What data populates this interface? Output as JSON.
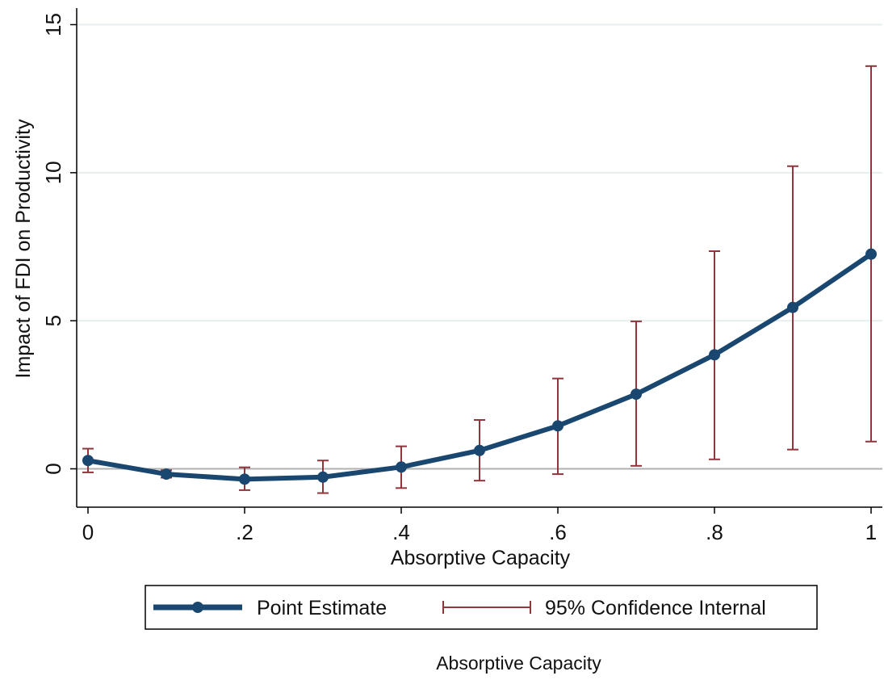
{
  "chart_data": {
    "type": "line",
    "xlabel": "Absorptive Capacity",
    "ylabel": "Impact of FDI on Productivity",
    "xlim": [
      0,
      1
    ],
    "ylim": [
      -1.3,
      15.5
    ],
    "xticks": [
      0,
      0.2,
      0.4,
      0.6,
      0.8,
      1
    ],
    "xtick_labels": [
      "0",
      ".2",
      ".4",
      ".6",
      ".8",
      "1"
    ],
    "yticks": [
      0,
      5,
      10,
      15
    ],
    "ytick_labels": [
      "0",
      "5",
      "10",
      "15"
    ],
    "grid": "horizontal",
    "legend_placement": "bottom",
    "x": [
      0,
      0.1,
      0.2,
      0.3,
      0.4,
      0.5,
      0.6,
      0.7,
      0.8,
      0.9,
      1.0
    ],
    "series": [
      {
        "name": "Point Estimate",
        "type": "line",
        "color": "#1a476f",
        "values": [
          0.28,
          -0.18,
          -0.35,
          -0.28,
          0.06,
          0.62,
          1.45,
          2.52,
          3.85,
          5.45,
          7.25
        ]
      },
      {
        "name": "95% Confidence Internal",
        "type": "errorbar",
        "color": "#90353b",
        "lower": [
          -0.12,
          -0.3,
          -0.72,
          -0.82,
          -0.65,
          -0.4,
          -0.18,
          0.1,
          0.32,
          0.65,
          0.92
        ],
        "upper": [
          0.68,
          -0.05,
          0.05,
          0.28,
          0.76,
          1.65,
          3.05,
          4.98,
          7.35,
          10.22,
          13.6
        ]
      }
    ],
    "reference_line_y": 0
  },
  "caption": "Absorptive Capacity"
}
